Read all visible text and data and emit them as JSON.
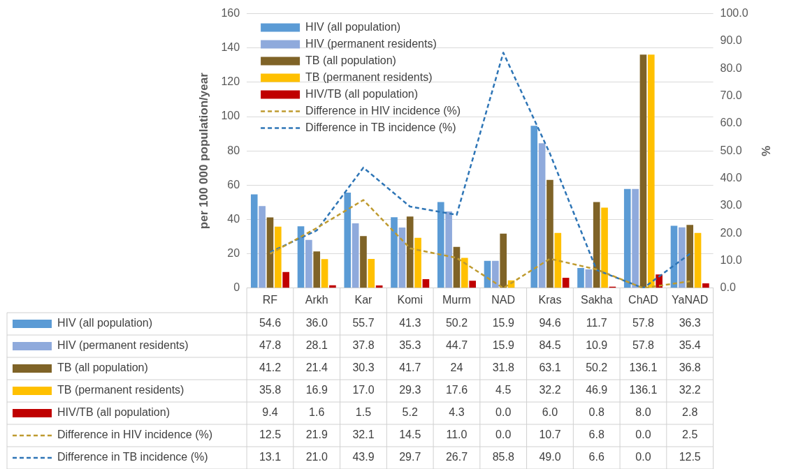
{
  "chart_data": {
    "type": "bar",
    "ylabel": "per 100 000 population/year",
    "y2label": "%",
    "categories": [
      "RF",
      "Arkh",
      "Kar",
      "Komi",
      "Murm",
      "NAD",
      "Kras",
      "Sakha",
      "ChAD",
      "YaNAD"
    ],
    "ylim": [
      0,
      160
    ],
    "yticks": [
      0,
      20,
      40,
      60,
      80,
      100,
      120,
      140,
      160
    ],
    "y2lim": [
      0,
      100
    ],
    "y2ticks": [
      {
        "value": 0,
        "label": "0.0"
      },
      {
        "value": 10,
        "label": "10.0"
      },
      {
        "value": 20,
        "label": "20.0"
      },
      {
        "value": 30,
        "label": "30.0"
      },
      {
        "value": 40,
        "label": "40.0"
      },
      {
        "value": 50,
        "label": "50.0"
      },
      {
        "value": 60,
        "label": "60.0"
      },
      {
        "value": 70,
        "label": "70.0"
      },
      {
        "value": 80,
        "label": "80.0"
      },
      {
        "value": 90,
        "label": "90.0"
      },
      {
        "value": 100,
        "label": "100.0"
      }
    ],
    "grid": "y",
    "legend": "left",
    "line_style": "dashed",
    "marker": "none",
    "series": [
      {
        "name": "HIV (all population)",
        "color": "#5b9bd5",
        "values": [
          54.6,
          36.0,
          55.7,
          41.3,
          50.2,
          15.9,
          94.6,
          11.7,
          57.8,
          36.3
        ],
        "value_labels": [
          "54.6",
          "36.0",
          "55.7",
          "41.3",
          "50.2",
          "15.9",
          "94.6",
          "11.7",
          "57.8",
          "36.3"
        ]
      },
      {
        "name": "HIV (permanent residents)",
        "color": "#8faadc",
        "values": [
          47.8,
          28.1,
          37.8,
          35.3,
          44.7,
          15.9,
          84.5,
          10.9,
          57.8,
          35.4
        ],
        "value_labels": [
          "47.8",
          "28.1",
          "37.8",
          "35.3",
          "44.7",
          "15.9",
          "84.5",
          "10.9",
          "57.8",
          "35.4"
        ]
      },
      {
        "name": "TB (all population)",
        "color": "#7f6327",
        "values": [
          41.2,
          21.4,
          30.3,
          41.7,
          24,
          31.8,
          63.1,
          50.2,
          136.1,
          36.8
        ],
        "value_labels": [
          "41.2",
          "21.4",
          "30.3",
          "41.7",
          "24",
          "31.8",
          "63.1",
          "50.2",
          "136.1",
          "36.8"
        ]
      },
      {
        "name": "TB (permanent residents)",
        "color": "#ffc000",
        "values": [
          35.8,
          16.9,
          17.0,
          29.3,
          17.6,
          4.5,
          32.2,
          46.9,
          136.1,
          32.2
        ],
        "value_labels": [
          "35.8",
          "16.9",
          "17.0",
          "29.3",
          "17.6",
          "4.5",
          "32.2",
          "46.9",
          "136.1",
          "32.2"
        ]
      },
      {
        "name": "HIV/TB (all population)",
        "color": "#c00000",
        "values": [
          9.4,
          1.6,
          1.5,
          5.2,
          4.3,
          0.0,
          6.0,
          0.8,
          8.0,
          2.8
        ],
        "value_labels": [
          "9.4",
          "1.6",
          "1.5",
          "5.2",
          "4.3",
          "0.0",
          "6.0",
          "0.8",
          "8.0",
          "2.8"
        ]
      },
      {
        "name": "Difference in HIV incidence (%)",
        "type": "line",
        "axis": "y2",
        "color": "#bf9b30",
        "values": [
          12.5,
          21.9,
          32.1,
          14.5,
          11.0,
          0.0,
          10.7,
          6.8,
          0.0,
          2.5
        ],
        "value_labels": [
          "12.5",
          "21.9",
          "32.1",
          "14.5",
          "11.0",
          "0.0",
          "10.7",
          "6.8",
          "0.0",
          "2.5"
        ]
      },
      {
        "name": "Difference in TB incidence (%)",
        "type": "line",
        "axis": "y2",
        "color": "#2e75b6",
        "values": [
          13.1,
          21.0,
          43.9,
          29.7,
          26.7,
          85.8,
          49.0,
          6.6,
          0.0,
          12.5
        ],
        "value_labels": [
          "13.1",
          "21.0",
          "43.9",
          "29.7",
          "26.7",
          "85.8",
          "49.0",
          "6.6",
          "0.0",
          "12.5"
        ]
      }
    ]
  }
}
